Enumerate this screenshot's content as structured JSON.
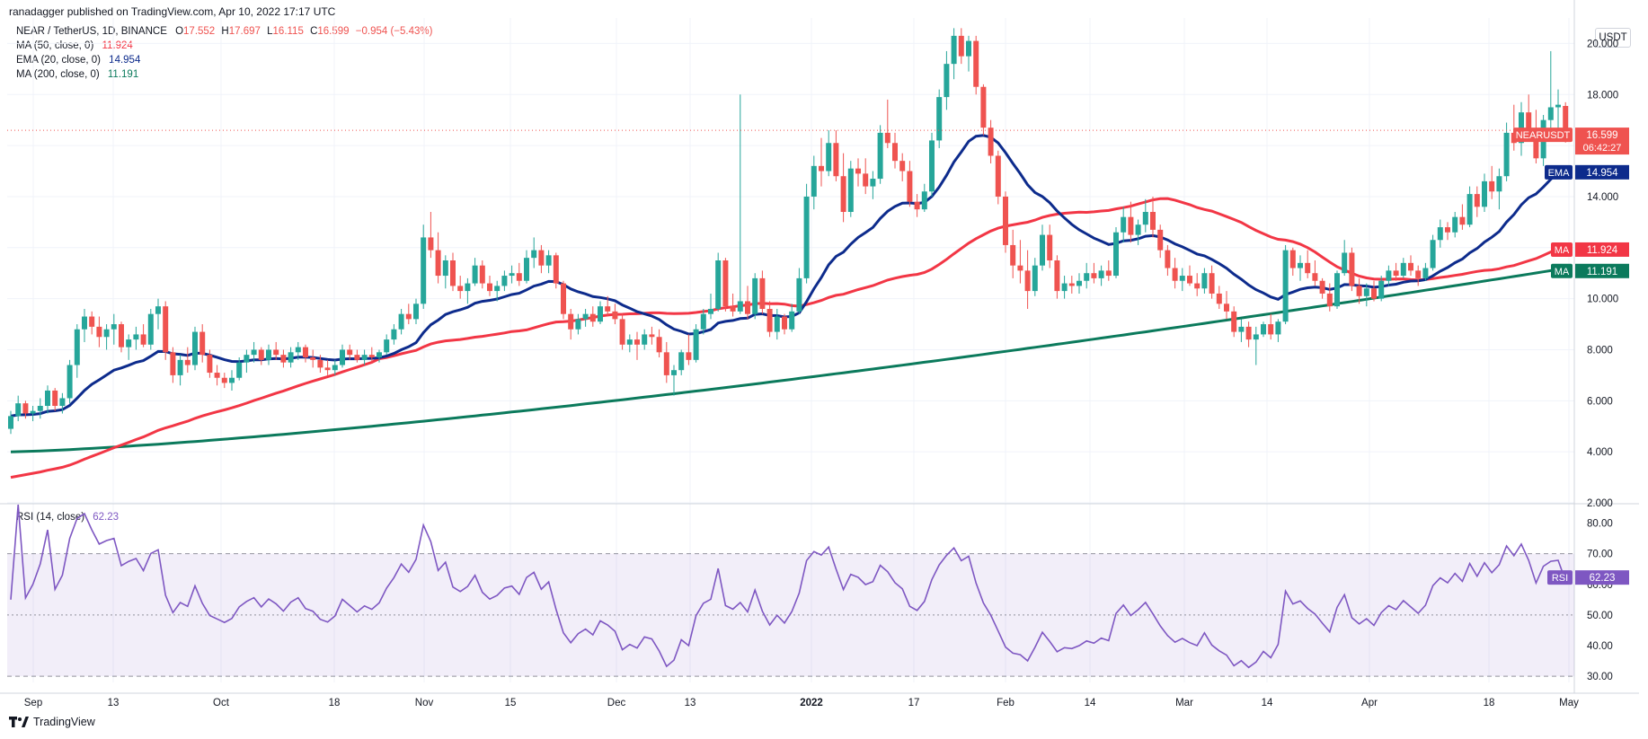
{
  "header": {
    "publisher_line": "ranadagger published on TradingView.com, Apr 10, 2022 17:17 UTC",
    "currency_button": "USDT"
  },
  "legend": {
    "symbol_line": "NEAR / TetherUS, 1D, BINANCE",
    "ohlc": {
      "o_label": "O",
      "o": "17.552",
      "h_label": "H",
      "h": "17.697",
      "l_label": "L",
      "l": "16.115",
      "c_label": "C",
      "c": "16.599",
      "change": "−0.954 (−5.43%)"
    },
    "indicators": [
      {
        "label": "MA (50, close, 0)",
        "value": "11.924",
        "color": "#f23645"
      },
      {
        "label": "EMA (20, close, 0)",
        "value": "14.954",
        "color": "#0d2b8c"
      },
      {
        "label": "MA (200, close, 0)",
        "value": "11.191",
        "color": "#0b7a5c"
      }
    ],
    "rsi_label": "RSI (14, close)",
    "rsi_value": "62.23"
  },
  "price_axis": {
    "ticks": [
      "2.000",
      "4.000",
      "6.000",
      "8.000",
      "10.000",
      "12.000",
      "14.000",
      "16.000",
      "18.000",
      "20.000"
    ],
    "tags": [
      {
        "label": "NEARUSDT",
        "value": "16.599",
        "sub": "06:42:27",
        "color": "#ef5350"
      },
      {
        "label": "EMA",
        "value": "14.954",
        "color": "#0d2b8c"
      },
      {
        "label": "MA",
        "value": "11.924",
        "color": "#f23645"
      },
      {
        "label": "MA",
        "value": "11.191",
        "color": "#0b7a5c"
      }
    ]
  },
  "rsi_axis": {
    "ticks": [
      "30.00",
      "40.00",
      "50.00",
      "60.00",
      "70.00",
      "80.00"
    ],
    "tag": {
      "label": "RSI",
      "value": "62.23",
      "color": "#7e57c2"
    }
  },
  "time_axis": {
    "ticks": [
      "Sep",
      "13",
      "Oct",
      "18",
      "Nov",
      "15",
      "Dec",
      "13",
      "2022",
      "17",
      "Feb",
      "14",
      "Mar",
      "14",
      "Apr",
      "18",
      "May"
    ]
  },
  "brand": {
    "name": "TradingView"
  },
  "chart_data": {
    "type": "candlestick",
    "symbol": "NEAR / TetherUS",
    "interval": "1D",
    "ylim": [
      2,
      21
    ],
    "rsi_ylim": [
      28,
      86
    ],
    "rsi_bands": [
      30,
      70
    ],
    "colors": {
      "up": "#26a69a",
      "down": "#ef5350",
      "ma50": "#f23645",
      "ema20": "#0d2b8c",
      "ma200": "#0b7a5c",
      "rsi": "#7e57c2"
    },
    "candles": [
      [
        4.9,
        5.6,
        4.7,
        5.4
      ],
      [
        5.4,
        6.2,
        5.2,
        5.9
      ],
      [
        5.9,
        6.0,
        5.3,
        5.5
      ],
      [
        5.5,
        5.8,
        5.2,
        5.6
      ],
      [
        5.6,
        6.1,
        5.3,
        5.8
      ],
      [
        5.8,
        6.6,
        5.5,
        6.4
      ],
      [
        6.4,
        6.5,
        5.6,
        5.8
      ],
      [
        5.8,
        6.3,
        5.5,
        6.1
      ],
      [
        6.1,
        7.6,
        5.9,
        7.4
      ],
      [
        7.4,
        9.0,
        6.9,
        8.8
      ],
      [
        8.8,
        9.6,
        8.3,
        9.3
      ],
      [
        9.3,
        9.5,
        8.6,
        8.9
      ],
      [
        8.9,
        9.3,
        8.1,
        8.5
      ],
      [
        8.5,
        9.0,
        8.0,
        8.8
      ],
      [
        8.8,
        9.4,
        8.2,
        9.0
      ],
      [
        9.0,
        9.1,
        7.9,
        8.1
      ],
      [
        8.1,
        8.6,
        7.6,
        8.4
      ],
      [
        8.4,
        8.9,
        8.0,
        8.6
      ],
      [
        8.6,
        9.0,
        8.1,
        8.2
      ],
      [
        8.2,
        9.6,
        8.0,
        9.4
      ],
      [
        9.4,
        10.0,
        8.8,
        9.7
      ],
      [
        9.7,
        9.9,
        7.6,
        7.9
      ],
      [
        7.9,
        8.1,
        6.7,
        7.0
      ],
      [
        7.0,
        7.8,
        6.6,
        7.6
      ],
      [
        7.6,
        8.1,
        7.1,
        7.4
      ],
      [
        7.4,
        8.9,
        7.2,
        8.7
      ],
      [
        8.7,
        9.0,
        7.5,
        7.8
      ],
      [
        7.8,
        8.0,
        6.9,
        7.1
      ],
      [
        7.1,
        7.4,
        6.6,
        6.9
      ],
      [
        6.9,
        7.1,
        6.5,
        6.7
      ],
      [
        6.7,
        7.2,
        6.4,
        6.9
      ],
      [
        6.9,
        7.7,
        6.8,
        7.5
      ],
      [
        7.5,
        8.0,
        7.1,
        7.8
      ],
      [
        7.8,
        8.3,
        7.5,
        8.0
      ],
      [
        8.0,
        8.1,
        7.4,
        7.6
      ],
      [
        7.6,
        8.2,
        7.4,
        8.0
      ],
      [
        8.0,
        8.3,
        7.6,
        7.8
      ],
      [
        7.8,
        8.0,
        7.3,
        7.5
      ],
      [
        7.5,
        8.1,
        7.3,
        7.9
      ],
      [
        7.9,
        8.3,
        7.6,
        8.1
      ],
      [
        8.1,
        8.2,
        7.5,
        7.7
      ],
      [
        7.7,
        8.0,
        7.3,
        7.6
      ],
      [
        7.6,
        7.8,
        7.1,
        7.3
      ],
      [
        7.3,
        7.6,
        7.0,
        7.2
      ],
      [
        7.2,
        7.6,
        7.0,
        7.4
      ],
      [
        7.4,
        8.2,
        7.3,
        8.0
      ],
      [
        8.0,
        8.2,
        7.6,
        7.8
      ],
      [
        7.8,
        8.0,
        7.5,
        7.6
      ],
      [
        7.6,
        8.0,
        7.4,
        7.8
      ],
      [
        7.8,
        8.1,
        7.5,
        7.7
      ],
      [
        7.7,
        8.0,
        7.5,
        7.9
      ],
      [
        7.9,
        8.6,
        7.8,
        8.4
      ],
      [
        8.4,
        9.0,
        8.2,
        8.8
      ],
      [
        8.8,
        9.6,
        8.6,
        9.4
      ],
      [
        9.4,
        9.8,
        9.0,
        9.2
      ],
      [
        9.2,
        10.0,
        9.0,
        9.8
      ],
      [
        9.8,
        12.9,
        9.6,
        12.4
      ],
      [
        12.4,
        13.4,
        11.6,
        11.9
      ],
      [
        11.9,
        12.6,
        10.6,
        10.9
      ],
      [
        10.9,
        11.7,
        10.4,
        11.5
      ],
      [
        11.5,
        11.8,
        10.3,
        10.5
      ],
      [
        10.5,
        10.9,
        10.0,
        10.3
      ],
      [
        10.3,
        10.8,
        9.8,
        10.6
      ],
      [
        10.6,
        11.6,
        10.5,
        11.3
      ],
      [
        11.3,
        11.5,
        10.4,
        10.6
      ],
      [
        10.6,
        10.9,
        10.1,
        10.3
      ],
      [
        10.3,
        10.7,
        9.9,
        10.5
      ],
      [
        10.5,
        11.1,
        10.3,
        10.9
      ],
      [
        10.9,
        11.3,
        10.6,
        11.0
      ],
      [
        11.0,
        11.4,
        10.5,
        10.7
      ],
      [
        10.7,
        11.9,
        10.6,
        11.6
      ],
      [
        11.6,
        12.4,
        11.2,
        11.9
      ],
      [
        11.9,
        12.1,
        11.0,
        11.3
      ],
      [
        11.3,
        11.9,
        11.0,
        11.7
      ],
      [
        11.7,
        11.8,
        10.4,
        10.6
      ],
      [
        10.6,
        10.7,
        9.2,
        9.4
      ],
      [
        9.4,
        9.6,
        8.4,
        8.8
      ],
      [
        8.8,
        9.4,
        8.6,
        9.2
      ],
      [
        9.2,
        9.6,
        8.9,
        9.4
      ],
      [
        9.4,
        9.7,
        8.9,
        9.1
      ],
      [
        9.1,
        9.9,
        9.0,
        9.7
      ],
      [
        9.7,
        10.1,
        9.3,
        9.5
      ],
      [
        9.5,
        9.8,
        9.0,
        9.2
      ],
      [
        9.2,
        9.4,
        8.0,
        8.2
      ],
      [
        8.2,
        8.6,
        7.9,
        8.4
      ],
      [
        8.4,
        8.7,
        7.6,
        8.2
      ],
      [
        8.2,
        8.8,
        8.0,
        8.6
      ],
      [
        8.6,
        8.9,
        8.2,
        8.5
      ],
      [
        8.5,
        8.8,
        7.7,
        7.9
      ],
      [
        7.9,
        8.3,
        6.7,
        7.0
      ],
      [
        7.0,
        7.4,
        6.2,
        7.2
      ],
      [
        7.2,
        8.0,
        7.0,
        7.9
      ],
      [
        7.9,
        8.6,
        7.4,
        7.6
      ],
      [
        7.6,
        9.0,
        7.5,
        8.8
      ],
      [
        8.8,
        9.6,
        8.6,
        9.4
      ],
      [
        9.4,
        10.2,
        9.2,
        9.6
      ],
      [
        9.6,
        11.8,
        9.5,
        11.5
      ],
      [
        11.5,
        11.6,
        9.5,
        9.7
      ],
      [
        9.7,
        10.2,
        9.3,
        9.5
      ],
      [
        9.5,
        18.0,
        9.4,
        9.9
      ],
      [
        9.9,
        10.5,
        9.2,
        9.4
      ],
      [
        9.4,
        11.0,
        9.2,
        10.8
      ],
      [
        10.8,
        11.1,
        9.4,
        9.6
      ],
      [
        9.6,
        9.9,
        8.5,
        8.7
      ],
      [
        8.7,
        9.6,
        8.4,
        9.3
      ],
      [
        9.3,
        9.4,
        8.6,
        8.8
      ],
      [
        8.8,
        9.8,
        8.7,
        9.5
      ],
      [
        9.5,
        11.2,
        9.4,
        10.8
      ],
      [
        10.8,
        14.5,
        10.6,
        14.0
      ],
      [
        14.0,
        15.6,
        13.5,
        15.2
      ],
      [
        15.2,
        16.3,
        14.4,
        15.0
      ],
      [
        15.0,
        16.6,
        14.8,
        16.1
      ],
      [
        16.1,
        16.6,
        14.6,
        14.8
      ],
      [
        14.8,
        15.7,
        13.0,
        13.4
      ],
      [
        13.4,
        15.4,
        13.2,
        15.1
      ],
      [
        15.1,
        15.5,
        14.4,
        14.9
      ],
      [
        14.9,
        15.5,
        14.1,
        14.4
      ],
      [
        14.4,
        15.0,
        13.9,
        14.7
      ],
      [
        14.7,
        16.8,
        14.5,
        16.5
      ],
      [
        16.5,
        17.8,
        15.9,
        16.1
      ],
      [
        16.1,
        16.5,
        15.1,
        15.4
      ],
      [
        15.4,
        15.7,
        14.6,
        15.0
      ],
      [
        15.0,
        15.4,
        13.6,
        13.8
      ],
      [
        13.8,
        14.1,
        13.2,
        13.5
      ],
      [
        13.5,
        14.5,
        13.4,
        14.2
      ],
      [
        14.2,
        16.5,
        14.0,
        16.2
      ],
      [
        16.2,
        18.2,
        15.9,
        17.9
      ],
      [
        17.9,
        19.7,
        17.4,
        19.2
      ],
      [
        19.2,
        20.6,
        18.6,
        20.3
      ],
      [
        20.3,
        20.6,
        19.2,
        19.5
      ],
      [
        19.5,
        20.3,
        18.9,
        20.1
      ],
      [
        20.1,
        20.3,
        18.0,
        18.3
      ],
      [
        18.3,
        18.4,
        16.4,
        16.7
      ],
      [
        16.7,
        17.0,
        15.3,
        15.6
      ],
      [
        15.6,
        15.8,
        13.7,
        14.0
      ],
      [
        14.0,
        14.2,
        11.8,
        12.1
      ],
      [
        12.1,
        12.7,
        10.8,
        11.3
      ],
      [
        11.3,
        12.3,
        10.6,
        11.1
      ],
      [
        11.1,
        11.9,
        9.6,
        10.3
      ],
      [
        10.3,
        11.6,
        10.1,
        11.3
      ],
      [
        11.3,
        12.9,
        11.1,
        12.5
      ],
      [
        12.5,
        12.9,
        11.2,
        11.5
      ],
      [
        11.5,
        11.7,
        10.0,
        10.3
      ],
      [
        10.3,
        10.9,
        10.0,
        10.6
      ],
      [
        10.6,
        10.9,
        10.2,
        10.5
      ],
      [
        10.5,
        11.0,
        10.2,
        10.7
      ],
      [
        10.7,
        11.4,
        10.4,
        11.0
      ],
      [
        11.0,
        11.4,
        10.6,
        10.8
      ],
      [
        10.8,
        11.3,
        10.5,
        11.1
      ],
      [
        11.1,
        11.5,
        10.7,
        10.9
      ],
      [
        10.9,
        12.8,
        10.8,
        12.6
      ],
      [
        12.6,
        13.6,
        12.2,
        13.2
      ],
      [
        13.2,
        13.8,
        12.2,
        12.5
      ],
      [
        12.5,
        13.1,
        12.1,
        12.9
      ],
      [
        12.9,
        13.9,
        12.6,
        13.4
      ],
      [
        13.4,
        14.0,
        12.4,
        12.7
      ],
      [
        12.7,
        12.9,
        11.6,
        11.9
      ],
      [
        11.9,
        12.1,
        10.9,
        11.2
      ],
      [
        11.2,
        11.6,
        10.4,
        10.7
      ],
      [
        10.7,
        11.2,
        10.3,
        10.9
      ],
      [
        10.9,
        11.3,
        10.5,
        10.6
      ],
      [
        10.6,
        11.0,
        10.1,
        10.4
      ],
      [
        10.4,
        11.2,
        10.2,
        11.0
      ],
      [
        11.0,
        11.3,
        10.0,
        10.2
      ],
      [
        10.2,
        10.5,
        9.6,
        9.8
      ],
      [
        9.8,
        10.3,
        9.2,
        9.5
      ],
      [
        9.5,
        9.7,
        8.5,
        8.7
      ],
      [
        8.7,
        9.2,
        8.3,
        8.9
      ],
      [
        8.9,
        9.1,
        8.1,
        8.4
      ],
      [
        8.4,
        8.9,
        7.4,
        8.6
      ],
      [
        8.6,
        9.1,
        8.5,
        9.0
      ],
      [
        9.0,
        9.4,
        8.4,
        8.6
      ],
      [
        8.6,
        9.2,
        8.3,
        9.1
      ],
      [
        9.1,
        12.1,
        9.0,
        11.9
      ],
      [
        11.9,
        12.0,
        10.9,
        11.2
      ],
      [
        11.2,
        11.7,
        10.7,
        11.4
      ],
      [
        11.4,
        11.9,
        10.8,
        11.0
      ],
      [
        11.0,
        11.5,
        10.5,
        10.7
      ],
      [
        10.7,
        10.8,
        10.0,
        10.2
      ],
      [
        10.2,
        10.6,
        9.5,
        9.7
      ],
      [
        9.7,
        11.1,
        9.6,
        11.0
      ],
      [
        11.0,
        12.3,
        10.9,
        11.8
      ],
      [
        11.8,
        12.0,
        10.3,
        10.5
      ],
      [
        10.5,
        10.8,
        9.8,
        10.1
      ],
      [
        10.1,
        10.6,
        9.7,
        10.4
      ],
      [
        10.4,
        10.7,
        9.9,
        10.0
      ],
      [
        10.0,
        10.9,
        9.9,
        10.7
      ],
      [
        10.7,
        11.3,
        10.5,
        11.1
      ],
      [
        11.1,
        11.4,
        10.7,
        10.9
      ],
      [
        10.9,
        11.6,
        10.8,
        11.4
      ],
      [
        11.4,
        11.7,
        10.9,
        11.1
      ],
      [
        11.1,
        11.3,
        10.5,
        10.8
      ],
      [
        10.8,
        11.4,
        10.7,
        11.2
      ],
      [
        11.2,
        12.5,
        11.1,
        12.3
      ],
      [
        12.3,
        13.1,
        12.0,
        12.8
      ],
      [
        12.8,
        13.0,
        12.3,
        12.6
      ],
      [
        12.6,
        13.4,
        12.4,
        13.2
      ],
      [
        13.2,
        13.7,
        12.7,
        12.9
      ],
      [
        12.9,
        14.4,
        12.8,
        14.1
      ],
      [
        14.1,
        14.4,
        13.2,
        13.6
      ],
      [
        13.6,
        14.9,
        13.4,
        14.6
      ],
      [
        14.6,
        15.2,
        13.9,
        14.2
      ],
      [
        14.2,
        15.1,
        13.5,
        14.8
      ],
      [
        14.8,
        16.9,
        14.6,
        16.5
      ],
      [
        16.5,
        17.6,
        15.8,
        16.1
      ],
      [
        16.1,
        17.7,
        15.6,
        17.3
      ],
      [
        17.3,
        18.0,
        16.2,
        16.6
      ],
      [
        16.6,
        17.4,
        15.3,
        15.5
      ],
      [
        15.5,
        17.2,
        15.2,
        17.0
      ],
      [
        17.0,
        19.7,
        16.6,
        17.5
      ],
      [
        17.5,
        18.2,
        16.6,
        17.6
      ],
      [
        17.552,
        17.697,
        16.115,
        16.599
      ]
    ],
    "rsi_note": "RSI (14) computed from candle closes"
  }
}
